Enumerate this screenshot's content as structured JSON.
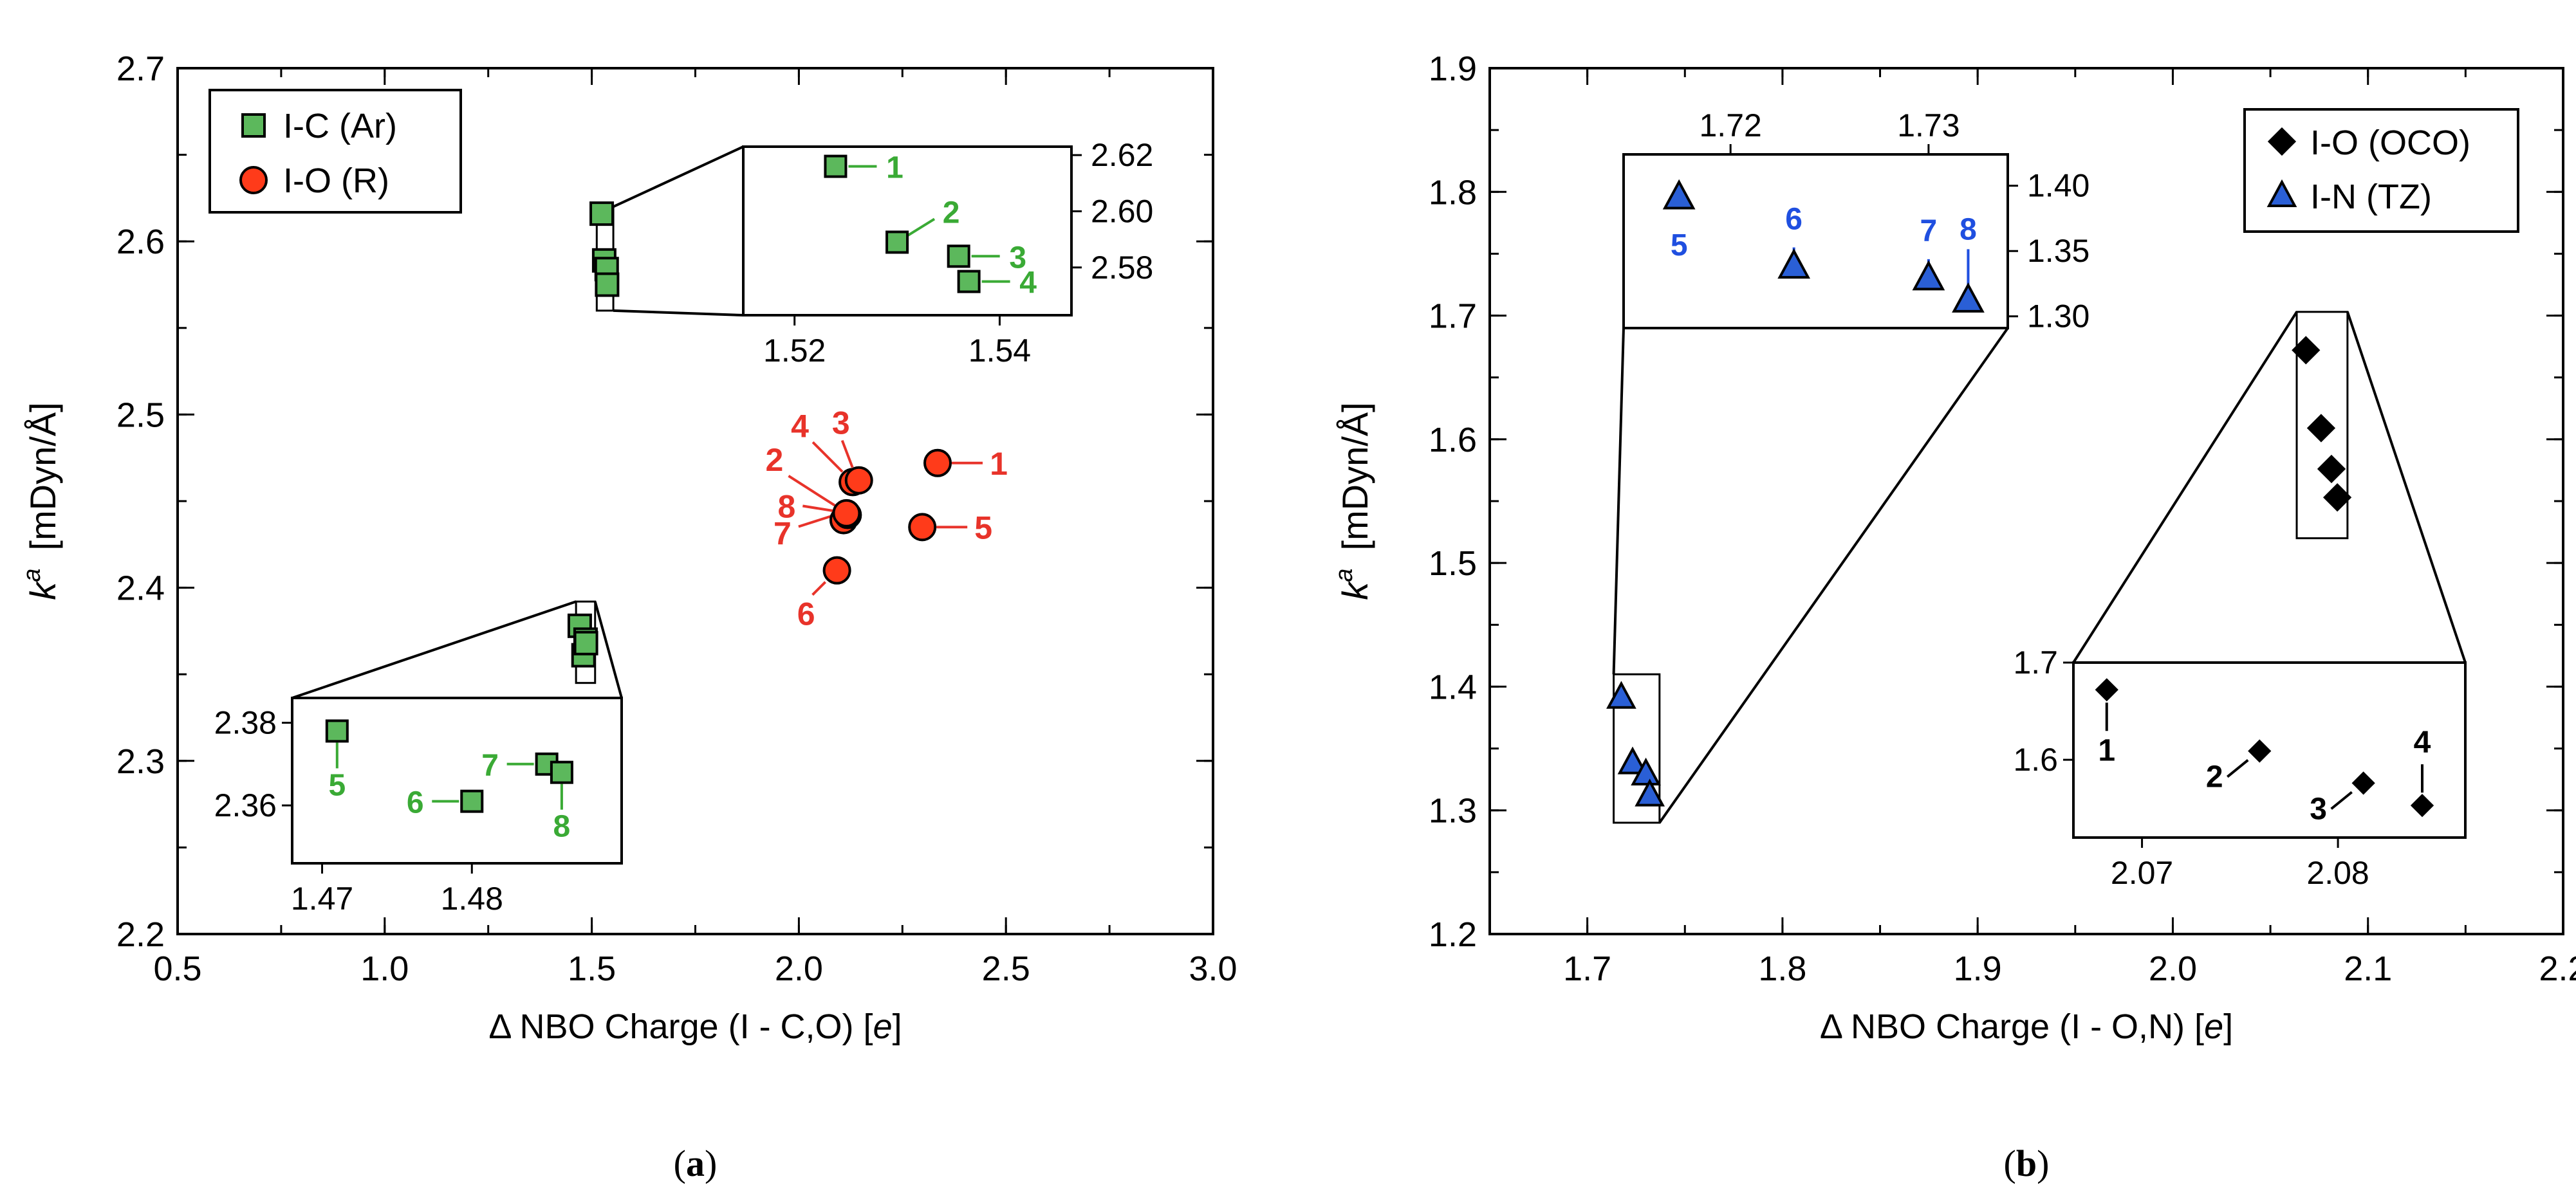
{
  "colors": {
    "green_fill": "#5cb85c",
    "green_text": "#3aaa35",
    "red_fill": "#ff3b1a",
    "red_text": "#e8332a",
    "blue_fill": "#2a5fd6",
    "blue_text": "#1f4fe0",
    "black": "#000000"
  },
  "chart_data": [
    {
      "panel_label": "(a)",
      "type": "scatter",
      "xlabel": "Δ NBO Charge (I - C,O) [e]",
      "ylabel": "k^a [mDyn/Å]",
      "xlim": [
        0.5,
        3.0
      ],
      "ylim": [
        2.2,
        2.7
      ],
      "xticks": [
        0.5,
        1.0,
        1.5,
        2.0,
        2.5,
        3.0
      ],
      "yticks": [
        2.2,
        2.3,
        2.4,
        2.5,
        2.6,
        2.7
      ],
      "legend": [
        "I-C (Ar)",
        "I-O (R)"
      ],
      "legend_position": "top-left",
      "series": [
        {
          "name": "I-C (Ar)",
          "marker": "square",
          "points": [
            {
              "label": "1",
              "x": 1.524,
              "y": 2.616
            },
            {
              "label": "2",
              "x": 1.53,
              "y": 2.589
            },
            {
              "label": "3",
              "x": 1.536,
              "y": 2.584
            },
            {
              "label": "4",
              "x": 1.537,
              "y": 2.575
            },
            {
              "label": "5",
              "x": 1.471,
              "y": 2.378
            },
            {
              "label": "6",
              "x": 1.48,
              "y": 2.361
            },
            {
              "label": "7",
              "x": 1.485,
              "y": 2.37
            },
            {
              "label": "8",
              "x": 1.486,
              "y": 2.368
            }
          ]
        },
        {
          "name": "I-O (R)",
          "marker": "circle",
          "points": [
            {
              "label": "1",
              "x": 2.335,
              "y": 2.472
            },
            {
              "label": "2",
              "x": 2.115,
              "y": 2.443
            },
            {
              "label": "3",
              "x": 2.145,
              "y": 2.462
            },
            {
              "label": "4",
              "x": 2.13,
              "y": 2.461
            },
            {
              "label": "5",
              "x": 2.298,
              "y": 2.435
            },
            {
              "label": "6",
              "x": 2.092,
              "y": 2.41
            },
            {
              "label": "7",
              "x": 2.108,
              "y": 2.439
            },
            {
              "label": "8",
              "x": 2.118,
              "y": 2.442
            }
          ]
        }
      ],
      "insets": [
        {
          "series": "I-C (Ar)",
          "points": [
            "1",
            "2",
            "3",
            "4"
          ],
          "xlim": [
            1.515,
            1.547
          ],
          "ylim": [
            2.563,
            2.623
          ],
          "xticks": [
            1.52,
            1.54
          ],
          "yticks": [
            2.58,
            2.6,
            2.62
          ],
          "tick_labels_x": [
            "1.52",
            "1.54"
          ],
          "tick_labels_y": [
            "2.58",
            "2.60",
            "2.62"
          ]
        },
        {
          "series": "I-C (Ar)",
          "points": [
            "5",
            "6",
            "7",
            "8"
          ],
          "xlim": [
            1.468,
            1.49
          ],
          "ylim": [
            2.346,
            2.386
          ],
          "xticks": [
            1.47,
            1.48
          ],
          "yticks": [
            2.36,
            2.38
          ],
          "tick_labels_x": [
            "1.47",
            "1.48"
          ],
          "tick_labels_y": [
            "2.36",
            "2.38"
          ]
        }
      ]
    },
    {
      "panel_label": "(b)",
      "type": "scatter",
      "xlabel": "Δ NBO Charge (I - O,N) [e]",
      "ylabel": "k^a [mDyn/Å]",
      "xlim": [
        1.65,
        2.2
      ],
      "ylim": [
        1.2,
        1.9
      ],
      "xticks": [
        1.7,
        1.8,
        1.9,
        2.0,
        2.1,
        2.2
      ],
      "yticks": [
        1.2,
        1.3,
        1.4,
        1.5,
        1.6,
        1.7,
        1.8,
        1.9
      ],
      "legend": [
        "I-O (OCO)",
        "I-N (TZ)"
      ],
      "legend_position": "top-right",
      "series": [
        {
          "name": "I-O (OCO)",
          "marker": "diamond",
          "points": [
            {
              "label": "1",
              "x": 2.0682,
              "y": 1.672
            },
            {
              "label": "2",
              "x": 2.076,
              "y": 1.609
            },
            {
              "label": "3",
              "x": 2.0813,
              "y": 1.576
            },
            {
              "label": "4",
              "x": 2.0843,
              "y": 1.553
            }
          ]
        },
        {
          "name": "I-N (TZ)",
          "marker": "triangle",
          "points": [
            {
              "label": "5",
              "x": 1.7174,
              "y": 1.391
            },
            {
              "label": "6",
              "x": 1.7232,
              "y": 1.338
            },
            {
              "label": "7",
              "x": 1.73,
              "y": 1.329
            },
            {
              "label": "8",
              "x": 1.732,
              "y": 1.312
            }
          ]
        }
      ],
      "insets": [
        {
          "series": "I-N (TZ)",
          "points": [
            "5",
            "6",
            "7",
            "8"
          ],
          "xlim": [
            1.7146,
            1.734
          ],
          "ylim": [
            1.291,
            1.424
          ],
          "xticks": [
            1.72,
            1.73
          ],
          "yticks": [
            1.3,
            1.35,
            1.4
          ],
          "tick_labels_x": [
            "1.72",
            "1.73"
          ],
          "tick_labels_y": [
            "1.30",
            "1.35",
            "1.40"
          ]
        },
        {
          "series": "I-O (OCO)",
          "points": [
            "1",
            "2",
            "3",
            "4"
          ],
          "xlim": [
            2.0665,
            2.0865
          ],
          "ylim": [
            1.52,
            1.7
          ],
          "xticks": [
            2.07,
            2.08
          ],
          "yticks": [
            1.6,
            1.7
          ],
          "tick_labels_x": [
            "2.07",
            "2.08"
          ],
          "tick_labels_y": [
            "1.6",
            "1.7"
          ]
        }
      ]
    }
  ]
}
